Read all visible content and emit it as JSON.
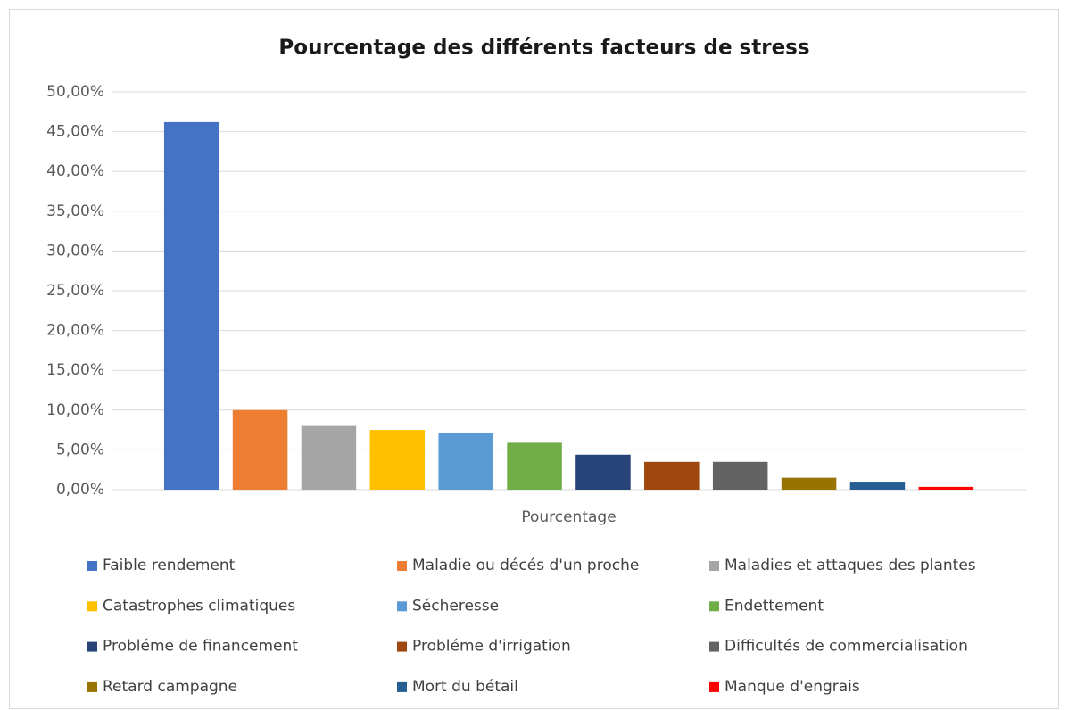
{
  "chart_data": {
    "type": "bar",
    "title": "Pourcentage des différents facteurs de stress",
    "categories": [
      "Pourcentage"
    ],
    "series": [
      {
        "name": "Faible rendement",
        "color": "#4472c4",
        "values": [
          46.2
        ]
      },
      {
        "name": "Maladie ou décés d'un proche",
        "color": "#ed7d31",
        "values": [
          10.0
        ]
      },
      {
        "name": "Maladies et attaques des plantes",
        "color": "#a5a5a5",
        "values": [
          8.0
        ]
      },
      {
        "name": "Catastrophes climatiques",
        "color": "#ffc000",
        "values": [
          7.5
        ]
      },
      {
        "name": "Sécheresse",
        "color": "#5b9bd5",
        "values": [
          7.1
        ]
      },
      {
        "name": "Endettement",
        "color": "#70ad47",
        "values": [
          5.9
        ]
      },
      {
        "name": "Probléme de financement",
        "color": "#264478",
        "values": [
          4.4
        ]
      },
      {
        "name": "Probléme d'irrigation",
        "color": "#9e480e",
        "values": [
          3.5
        ]
      },
      {
        "name": "Difficultés de commercialisation",
        "color": "#636363",
        "values": [
          3.5
        ]
      },
      {
        "name": "Retard campagne",
        "color": "#997300",
        "values": [
          1.5
        ]
      },
      {
        "name": "Mort du bétail",
        "color": "#255e91",
        "values": [
          1.0
        ]
      },
      {
        "name": "Manque d'engrais",
        "color": "#ff0000",
        "values": [
          0.35
        ]
      }
    ],
    "ylim": [
      0,
      50
    ],
    "yticks": [
      {
        "value": 0,
        "label": "0,00%"
      },
      {
        "value": 5,
        "label": "5,00%"
      },
      {
        "value": 10,
        "label": "10,00%"
      },
      {
        "value": 15,
        "label": "15,00%"
      },
      {
        "value": 20,
        "label": "20,00%"
      },
      {
        "value": 25,
        "label": "25,00%"
      },
      {
        "value": 30,
        "label": "30,00%"
      },
      {
        "value": 35,
        "label": "35,00%"
      },
      {
        "value": 40,
        "label": "40,00%"
      },
      {
        "value": 45,
        "label": "45,00%"
      },
      {
        "value": 50,
        "label": "50,00%"
      }
    ],
    "grid": true,
    "legend": "bottom"
  }
}
